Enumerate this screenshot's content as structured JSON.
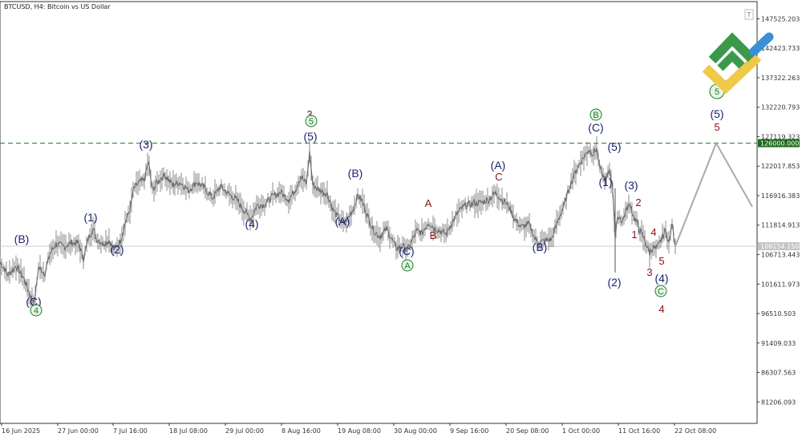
{
  "window": {
    "title": "BTCUSD, H4:  Bitcoin vs US Dollar",
    "corner_button": "T"
  },
  "colors": {
    "price": "#6e6e6e",
    "projection": "#a9a9a9",
    "level_line": "#2e7d32",
    "level_badge": "#1e6b1e",
    "current_badge": "#c4c4c4",
    "wave_navy": "#1a1f6e",
    "wave_red": "#8b1010",
    "wave_green": "#1c7a2a",
    "logo_green": "#3a9a4a",
    "logo_yellow": "#f0c84a",
    "logo_blue": "#3b8fd6"
  },
  "chart_data": {
    "type": "line",
    "symbol": "BTCUSD",
    "timeframe": "H4",
    "ylim": [
      77500,
      150500
    ],
    "y_ticks": [
      "147525.203",
      "142423.733",
      "137322.263",
      "132220.793",
      "127119.323",
      "122017.853",
      "116916.383",
      "111814.913",
      "106713.443",
      "101611.973",
      "96510.503",
      "91409.033",
      "86307.563",
      "81206.093"
    ],
    "x_ticks": [
      "16 Jun 2025",
      "27 Jun 00:00",
      "7 Jul 16:00",
      "18 Jul 08:00",
      "29 Jul 00:00",
      "8 Aug 16:00",
      "19 Aug 08:00",
      "30 Aug 00:00",
      "9 Sep 16:00",
      "20 Sep 08:00",
      "1 Oct 00:00",
      "11 Oct 16:00",
      "22 Oct 08:00"
    ],
    "key_level": {
      "value": 126000,
      "label": "126000.000"
    },
    "current_price": {
      "value": 108154.15,
      "label": "108154.150"
    },
    "price_series": [
      [
        0,
        105500
      ],
      [
        10,
        103200
      ],
      [
        20,
        104800
      ],
      [
        30,
        102500
      ],
      [
        38,
        99500
      ],
      [
        43,
        98500
      ],
      [
        48,
        104500
      ],
      [
        56,
        103500
      ],
      [
        62,
        106800
      ],
      [
        70,
        108600
      ],
      [
        80,
        108100
      ],
      [
        90,
        108800
      ],
      [
        98,
        108600
      ],
      [
        104,
        106000
      ],
      [
        110,
        109500
      ],
      [
        116,
        111200
      ],
      [
        120,
        109500
      ],
      [
        128,
        108600
      ],
      [
        136,
        109200
      ],
      [
        142,
        107600
      ],
      [
        150,
        109000
      ],
      [
        156,
        112200
      ],
      [
        162,
        114500
      ],
      [
        167,
        118200
      ],
      [
        173,
        119200
      ],
      [
        180,
        119500
      ],
      [
        185,
        122800
      ],
      [
        190,
        117800
      ],
      [
        196,
        119200
      ],
      [
        205,
        120500
      ],
      [
        215,
        118800
      ],
      [
        225,
        119200
      ],
      [
        235,
        117800
      ],
      [
        245,
        119300
      ],
      [
        255,
        118200
      ],
      [
        265,
        116500
      ],
      [
        275,
        118500
      ],
      [
        285,
        117200
      ],
      [
        295,
        116200
      ],
      [
        305,
        114200
      ],
      [
        313,
        112900
      ],
      [
        320,
        115200
      ],
      [
        330,
        115400
      ],
      [
        340,
        116800
      ],
      [
        350,
        117500
      ],
      [
        360,
        116200
      ],
      [
        368,
        117900
      ],
      [
        375,
        120200
      ],
      [
        382,
        119000
      ],
      [
        386,
        124300
      ],
      [
        390,
        118800
      ],
      [
        398,
        117900
      ],
      [
        408,
        117200
      ],
      [
        415,
        114500
      ],
      [
        420,
        113500
      ],
      [
        428,
        112000
      ],
      [
        435,
        113200
      ],
      [
        441,
        114800
      ],
      [
        446,
        117000
      ],
      [
        452,
        115800
      ],
      [
        460,
        112800
      ],
      [
        466,
        110800
      ],
      [
        474,
        109800
      ],
      [
        482,
        111200
      ],
      [
        488,
        109500
      ],
      [
        494,
        107800
      ],
      [
        502,
        108200
      ],
      [
        508,
        107500
      ],
      [
        514,
        109200
      ],
      [
        520,
        110900
      ],
      [
        526,
        110400
      ],
      [
        534,
        112300
      ],
      [
        540,
        111500
      ],
      [
        548,
        110800
      ],
      [
        556,
        110300
      ],
      [
        564,
        112300
      ],
      [
        572,
        114200
      ],
      [
        580,
        115200
      ],
      [
        590,
        115600
      ],
      [
        600,
        115700
      ],
      [
        610,
        116300
      ],
      [
        618,
        117400
      ],
      [
        626,
        116200
      ],
      [
        634,
        115200
      ],
      [
        642,
        112800
      ],
      [
        650,
        111500
      ],
      [
        660,
        111900
      ],
      [
        667,
        109500
      ],
      [
        672,
        108700
      ],
      [
        680,
        109200
      ],
      [
        688,
        109400
      ],
      [
        696,
        112800
      ],
      [
        704,
        115500
      ],
      [
        710,
        118400
      ],
      [
        716,
        120600
      ],
      [
        722,
        122300
      ],
      [
        728,
        123600
      ],
      [
        734,
        124900
      ],
      [
        740,
        124100
      ],
      [
        744,
        125200
      ],
      [
        748,
        121600
      ],
      [
        752,
        120200
      ],
      [
        756,
        119600
      ],
      [
        760,
        121500
      ],
      [
        764,
        118200
      ],
      [
        767,
        110000
      ],
      [
        771,
        113500
      ],
      [
        776,
        112500
      ],
      [
        782,
        114800
      ],
      [
        786,
        115400
      ],
      [
        790,
        113200
      ],
      [
        794,
        112300
      ],
      [
        798,
        110800
      ],
      [
        802,
        109800
      ],
      [
        806,
        108400
      ],
      [
        810,
        107000
      ],
      [
        814,
        108000
      ],
      [
        818,
        107600
      ],
      [
        822,
        108500
      ],
      [
        826,
        109800
      ],
      [
        830,
        110900
      ],
      [
        834,
        108500
      ],
      [
        838,
        112300
      ],
      [
        842,
        108154.15
      ]
    ],
    "projection": [
      [
        842,
        108154.15
      ],
      [
        893,
        126000
      ],
      [
        938,
        115000
      ]
    ],
    "wave_labels": {
      "navy": [
        "(B)",
        "(C)",
        "(1)",
        "(2)",
        "(3)",
        "(4)",
        "(5)",
        "(A)",
        "(B)",
        "(C)",
        "(A)",
        "(B)",
        "(C)",
        "(1)",
        "(2)",
        "(3)",
        "(4)",
        "(5)",
        "(5)"
      ],
      "red": [
        "3",
        "A",
        "B",
        "C",
        "2",
        "1",
        "4",
        "5",
        "3",
        "4",
        "5"
      ],
      "green": [
        "4",
        "5",
        "A",
        "B",
        "C",
        "5"
      ]
    }
  }
}
